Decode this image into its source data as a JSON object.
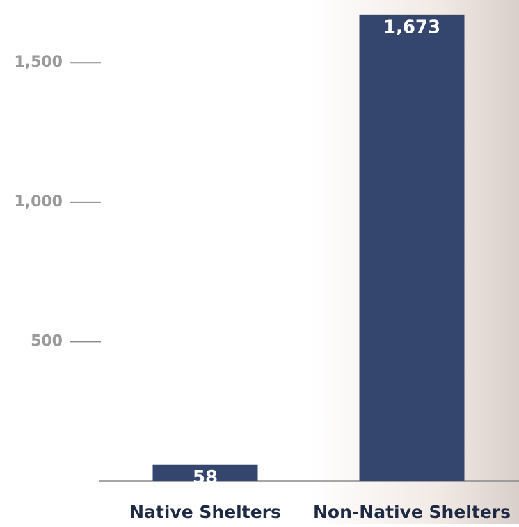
{
  "chart_data": {
    "type": "bar",
    "categories": [
      "Native Shelters",
      "Non-Native Shelters"
    ],
    "values": [
      58,
      1673
    ],
    "value_labels": [
      "58",
      "1,673"
    ],
    "color": "#34456e",
    "ylim": [
      0,
      1700
    ],
    "yticks": [
      500,
      {
        "value": 1000,
        "label": "1,000"
      },
      {
        "value": 1500,
        "label": "1,500"
      }
    ]
  }
}
